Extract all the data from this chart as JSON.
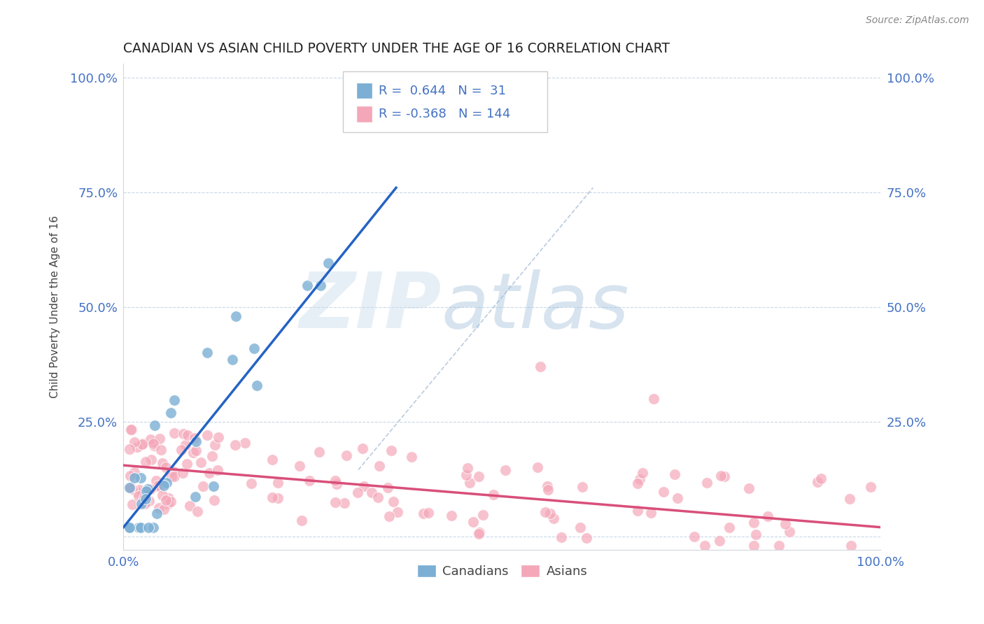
{
  "title": "CANADIAN VS ASIAN CHILD POVERTY UNDER THE AGE OF 16 CORRELATION CHART",
  "source": "Source: ZipAtlas.com",
  "ylabel": "Child Poverty Under the Age of 16",
  "xlim": [
    0,
    1
  ],
  "ylim": [
    -0.03,
    1.03
  ],
  "canadian_R": 0.644,
  "canadian_N": 31,
  "asian_R": -0.368,
  "asian_N": 144,
  "canadian_color": "#7bafd4",
  "asian_color": "#f4a7b9",
  "canadian_line_color": "#2563c4",
  "asian_line_color": "#d94f7a",
  "ref_line_color": "#a8bfd8",
  "background_color": "#ffffff",
  "canadian_line_x0": 0.0,
  "canadian_line_y0": 0.02,
  "canadian_line_x1": 0.36,
  "canadian_line_y1": 0.76,
  "asian_line_x0": 0.0,
  "asian_line_y0": 0.155,
  "asian_line_x1": 1.0,
  "asian_line_y1": 0.02,
  "ref_line_x0": 0.31,
  "ref_line_y0": 0.145,
  "ref_line_x1": 0.62,
  "ref_line_y1": 0.76
}
